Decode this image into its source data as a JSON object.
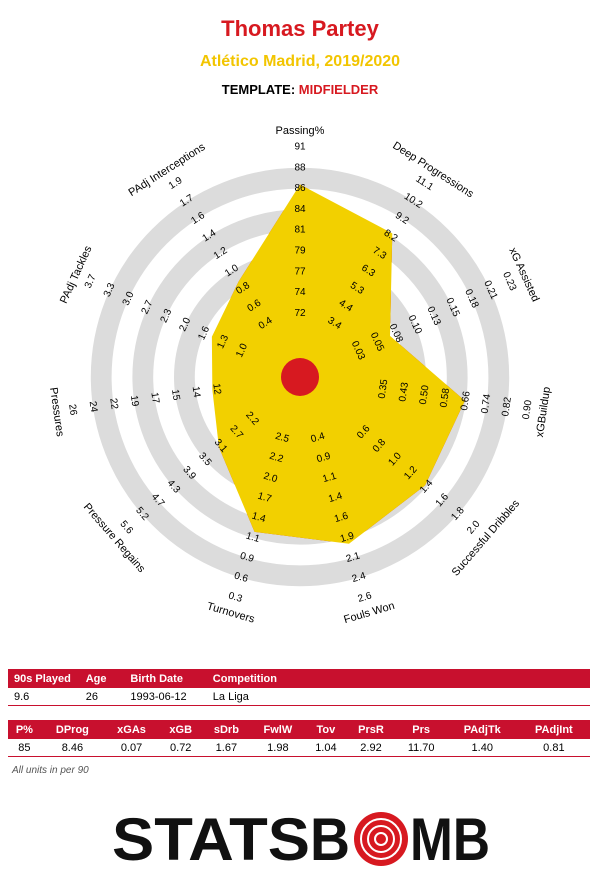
{
  "header": {
    "player": "Thomas Partey",
    "team_season": "Atlético Madrid, 2019/2020",
    "template_label": "TEMPLATE:",
    "template_value": "MIDFIELDER"
  },
  "colors": {
    "red": "#d71920",
    "yellow": "#f2d000",
    "ring_gray": "#dcdcdc",
    "table_red": "#c8102e"
  },
  "chart_data": {
    "type": "radar",
    "title": "Thomas Partey",
    "subtitle": "Atlético Madrid, 2019/2020",
    "grid": true,
    "ring_count": 10,
    "axes": [
      {
        "label": "Passing%",
        "ticks": [
          "72",
          "74",
          "77",
          "79",
          "81",
          "84",
          "86",
          "88",
          "91"
        ],
        "value": 85,
        "fraction": 0.82
      },
      {
        "label": "Deep Progressions",
        "ticks": [
          "3.4",
          "4.4",
          "5.3",
          "6.3",
          "7.3",
          "8.2",
          "9.2",
          "10.2",
          "11.1"
        ],
        "value": 8.46,
        "fraction": 0.715
      },
      {
        "label": "xG Assisted",
        "ticks": [
          "0.03",
          "0.05",
          "0.08",
          "0.10",
          "0.13",
          "0.15",
          "0.18",
          "0.21",
          "0.23"
        ],
        "value": 0.07,
        "fraction": 0.37
      },
      {
        "label": "xGBuildup",
        "ticks": [
          "0.35",
          "0.43",
          "0.50",
          "0.58",
          "0.66",
          "0.74",
          "0.82",
          "0.90"
        ],
        "value": 0.72,
        "fraction": 0.695
      },
      {
        "label": "Successful Dribbles",
        "ticks": [
          "0.6",
          "0.8",
          "1.0",
          "1.2",
          "1.4",
          "1.6",
          "1.8",
          "2.0"
        ],
        "value": 1.67,
        "fraction": 0.69
      },
      {
        "label": "Fouls Won",
        "ticks": [
          "0.4",
          "0.9",
          "1.1",
          "1.4",
          "1.6",
          "1.9",
          "2.1",
          "2.4",
          "2.6"
        ],
        "value": 1.98,
        "fraction": 0.73
      },
      {
        "label": "Turnovers",
        "ticks": [
          "2.5",
          "2.2",
          "2.0",
          "1.7",
          "1.4",
          "1.1",
          "0.9",
          "0.6",
          "0.3"
        ],
        "value": 1.04,
        "fraction": 0.67
      },
      {
        "label": "Pressure Regains",
        "ticks": [
          "2.2",
          "2.7",
          "3.1",
          "3.5",
          "3.9",
          "4.3",
          "4.7",
          "5.2",
          "5.6"
        ],
        "value": 2.92,
        "fraction": 0.41
      },
      {
        "label": "Pressures",
        "ticks": [
          "12",
          "14",
          "15",
          "17",
          "19",
          "22",
          "24",
          "26"
        ],
        "value": 11.7,
        "fraction": 0.32
      },
      {
        "label": "PAdj Tackles",
        "ticks": [
          "1.0",
          "1.3",
          "1.6",
          "2.0",
          "2.3",
          "2.7",
          "3.0",
          "3.3",
          "3.7"
        ],
        "value": 1.4,
        "fraction": 0.36
      },
      {
        "label": "PAdj Interceptions",
        "ticks": [
          "0.4",
          "0.6",
          "0.8",
          "1.0",
          "1.2",
          "1.4",
          "1.6",
          "1.7",
          "1.9"
        ],
        "value": 0.81,
        "fraction": 0.44
      }
    ]
  },
  "info_table": {
    "headers": [
      "90s Played",
      "Age",
      "Birth Date",
      "Competition",
      ""
    ],
    "row": [
      "9.6",
      "26",
      "1993-06-12",
      "La Liga",
      ""
    ]
  },
  "stats_table": {
    "headers": [
      "P%",
      "DProg",
      "xGAs",
      "xGB",
      "sDrb",
      "FwlW",
      "Tov",
      "PrsR",
      "Prs",
      "PAdjTk",
      "PAdjInt"
    ],
    "row": [
      "85",
      "8.46",
      "0.07",
      "0.72",
      "1.67",
      "1.98",
      "1.04",
      "2.92",
      "11.70",
      "1.40",
      "0.81"
    ]
  },
  "footer": {
    "units_note": "All units in per 90",
    "logo_left": "STATS",
    "logo_right": "B",
    "logo_after": "MB"
  }
}
